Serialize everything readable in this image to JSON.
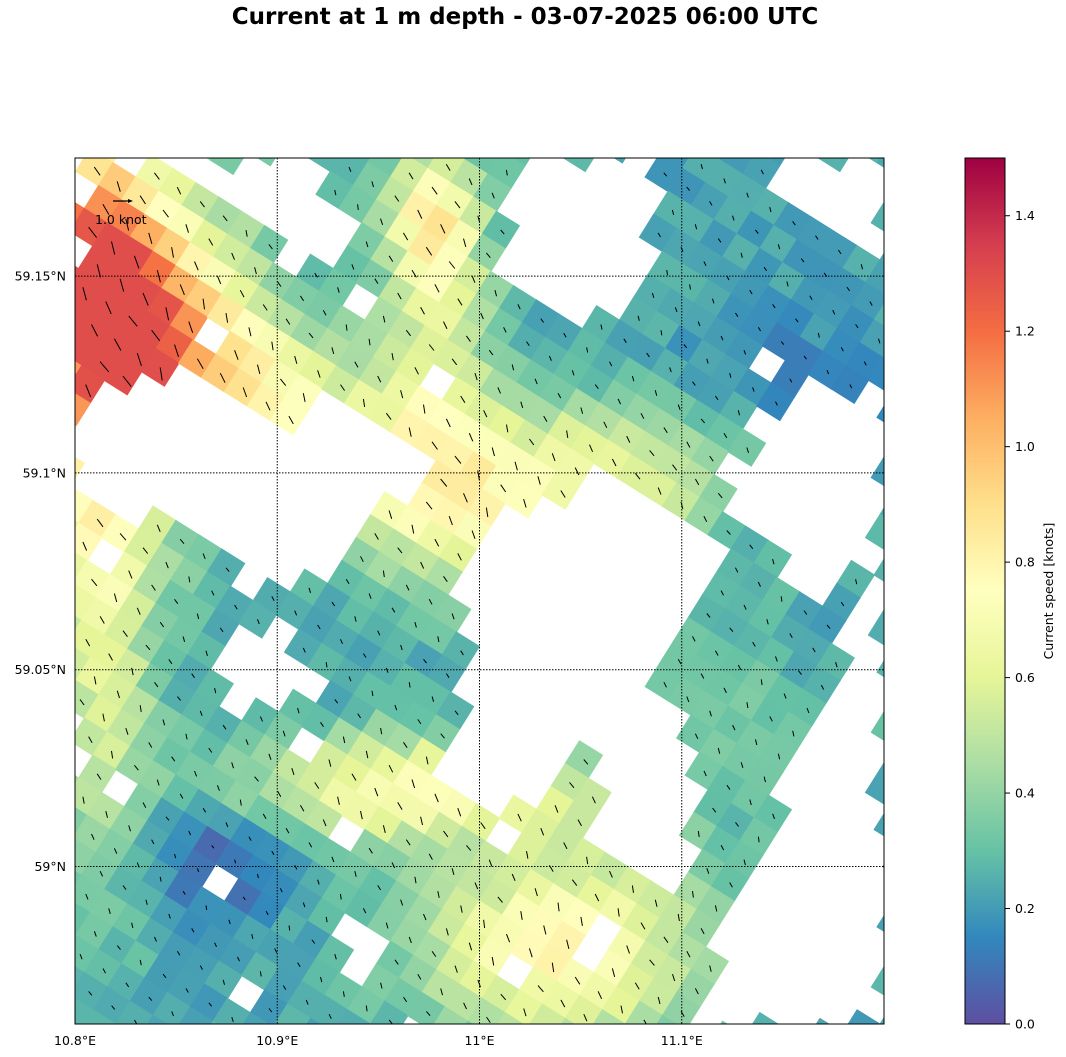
{
  "title": "Current at 1 m depth - 03-07-2025 06:00 UTC",
  "map": {
    "lon_range": [
      10.8,
      11.2
    ],
    "lat_range": [
      58.96,
      59.18
    ],
    "lon_ticks": [
      {
        "value": 10.8,
        "label": "10.8°E"
      },
      {
        "value": 10.9,
        "label": "10.9°E"
      },
      {
        "value": 11.0,
        "label": "11°E"
      },
      {
        "value": 11.1,
        "label": "11.1°E"
      }
    ],
    "lat_ticks": [
      {
        "value": 59.15,
        "label": "59.15°N"
      },
      {
        "value": 59.1,
        "label": "59.1°N"
      },
      {
        "value": 59.05,
        "label": "59.05°N"
      },
      {
        "value": 59.0,
        "label": "59°N"
      }
    ],
    "gridlines": "dotted",
    "reference_vector": {
      "speed": 1.0,
      "label": "1.0 knot",
      "position": "top-left"
    }
  },
  "colorbar": {
    "label": "Current speed [knots]",
    "colormap": "Spectral_r",
    "range": [
      0.0,
      1.5
    ],
    "ticks": [
      "0.0",
      "0.2",
      "0.4",
      "0.6",
      "0.8",
      "1.0",
      "1.2",
      "1.4"
    ],
    "stops": [
      "#5e4fa2",
      "#3288bd",
      "#66c2a5",
      "#abdda4",
      "#e6f598",
      "#ffffbf",
      "#fee08b",
      "#fdae61",
      "#f46d43",
      "#d53e4f",
      "#9e0142"
    ]
  }
}
